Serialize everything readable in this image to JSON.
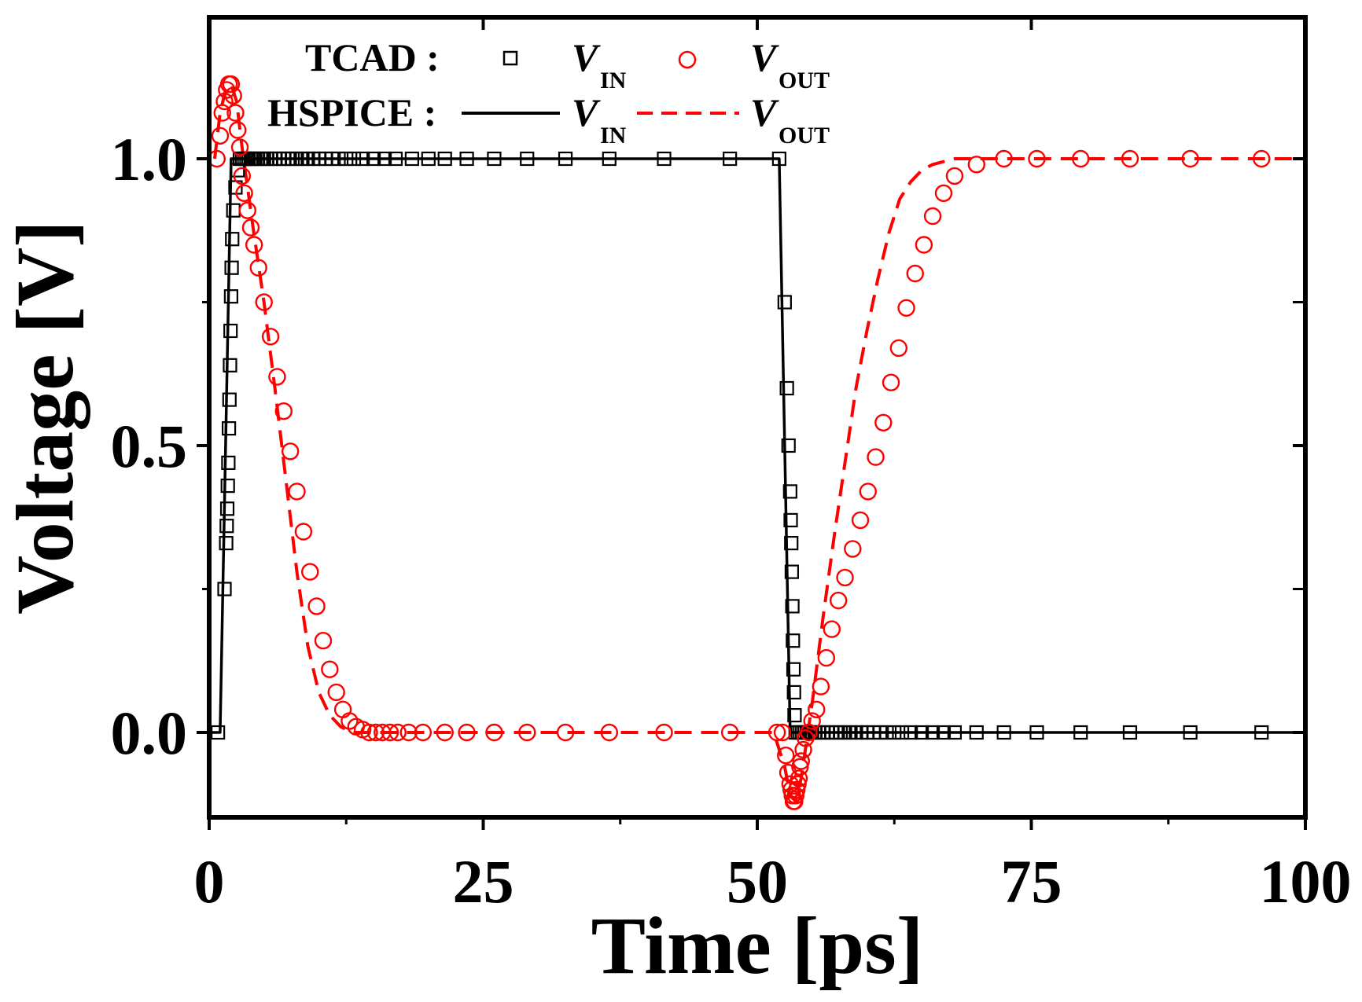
{
  "chart_data": {
    "type": "line",
    "xlabel": "Time [ps]",
    "ylabel": "Voltage [V]",
    "xlim": [
      0,
      100
    ],
    "ylim": [
      -0.15,
      1.25
    ],
    "xticks": [
      0,
      25,
      50,
      75,
      100
    ],
    "yticks": [
      0.0,
      0.5,
      1.0
    ],
    "xtick_labels": [
      "0",
      "25",
      "50",
      "75",
      "100"
    ],
    "ytick_labels": [
      "0.0",
      "0.5",
      "1.0"
    ],
    "legend": {
      "placement": "top-left",
      "rows": [
        {
          "group": "TCAD :",
          "items": [
            {
              "symbol": "square",
              "label": "V",
              "sub": "IN"
            },
            {
              "symbol": "circle",
              "label": "V",
              "sub": "OUT"
            }
          ]
        },
        {
          "group": "HSPICE :",
          "items": [
            {
              "symbol": "solid-line",
              "label": "V",
              "sub": "IN"
            },
            {
              "symbol": "dashed-line",
              "label": "V",
              "sub": "OUT"
            }
          ]
        }
      ]
    },
    "colors": {
      "vin": "#000000",
      "vout": "#ff0000",
      "axis": "#000000"
    },
    "series": [
      {
        "name": "HSPICE V_IN",
        "style": "solid",
        "color": "#000000",
        "x": [
          0,
          1,
          2,
          52,
          53,
          100
        ],
        "y": [
          0,
          0,
          1,
          1,
          0,
          0
        ]
      },
      {
        "name": "HSPICE V_OUT",
        "style": "dashed",
        "color": "#ff0000",
        "x": [
          0.5,
          1.0,
          1.5,
          2.0,
          2.5,
          3.0,
          3.5,
          4.0,
          5.0,
          6.0,
          7.0,
          8.0,
          9.0,
          10.0,
          11.0,
          12.0,
          13.0,
          15.0,
          20.0,
          30.0,
          40.0,
          50.0,
          51.5,
          52.5,
          53.0,
          53.5,
          54.0,
          55.0,
          56.0,
          57.0,
          58.0,
          59.0,
          60.0,
          61.0,
          62.0,
          63.0,
          64.0,
          65.0,
          66.0,
          68.0,
          70.0,
          75.0,
          85.0,
          100.0
        ],
        "y": [
          1.0,
          1.08,
          1.12,
          1.13,
          1.1,
          1.02,
          0.95,
          0.88,
          0.75,
          0.6,
          0.44,
          0.28,
          0.15,
          0.07,
          0.03,
          0.01,
          0.0,
          0.0,
          0.0,
          0.0,
          0.0,
          0.0,
          0.0,
          -0.06,
          -0.11,
          -0.12,
          -0.08,
          0.05,
          0.2,
          0.34,
          0.47,
          0.6,
          0.7,
          0.79,
          0.87,
          0.93,
          0.96,
          0.98,
          0.99,
          1.0,
          1.0,
          1.0,
          1.0,
          1.0
        ]
      },
      {
        "name": "TCAD V_IN",
        "marker": "square",
        "color": "#000000",
        "x": [
          0.8,
          1.4,
          1.55,
          1.6,
          1.65,
          1.7,
          1.75,
          1.8,
          1.85,
          1.9,
          1.95,
          2.0,
          2.05,
          2.1,
          2.2,
          2.4,
          2.6,
          2.8,
          3.0,
          3.2,
          3.4,
          3.6,
          3.8,
          4.0,
          4.2,
          4.4,
          4.7,
          5.0,
          5.3,
          5.6,
          6.0,
          6.4,
          6.8,
          7.2,
          7.6,
          8.0,
          8.5,
          9.0,
          9.5,
          10.0,
          10.6,
          11.2,
          11.8,
          12.5,
          13.2,
          14.0,
          15.0,
          16.0,
          17.0,
          18.5,
          20.0,
          21.5,
          23.5,
          26.0,
          29.0,
          32.5,
          36.5,
          41.5,
          47.5,
          52.0,
          52.5,
          52.7,
          52.85,
          53.0,
          53.05,
          53.1,
          53.15,
          53.2,
          53.25,
          53.3,
          53.35,
          53.4,
          53.5,
          53.7,
          53.9,
          54.1,
          54.3,
          54.5,
          54.7,
          55.0,
          55.3,
          55.6,
          56.0,
          56.4,
          56.8,
          57.2,
          57.6,
          58.0,
          58.5,
          59.0,
          59.5,
          60.0,
          60.6,
          61.2,
          61.8,
          62.5,
          63.2,
          64.0,
          65.0,
          66.0,
          67.0,
          68.0,
          70.0,
          72.5,
          75.5,
          79.5,
          84.0,
          89.5,
          96.0
        ],
        "y": [
          0.0,
          0.25,
          0.33,
          0.36,
          0.39,
          0.43,
          0.47,
          0.53,
          0.58,
          0.64,
          0.7,
          0.76,
          0.81,
          0.86,
          0.91,
          0.95,
          0.98,
          1.0,
          1.0,
          1.0,
          1.0,
          1.0,
          1.0,
          1.0,
          1.0,
          1.0,
          1.0,
          1.0,
          1.0,
          1.0,
          1.0,
          1.0,
          1.0,
          1.0,
          1.0,
          1.0,
          1.0,
          1.0,
          1.0,
          1.0,
          1.0,
          1.0,
          1.0,
          1.0,
          1.0,
          1.0,
          1.0,
          1.0,
          1.0,
          1.0,
          1.0,
          1.0,
          1.0,
          1.0,
          1.0,
          1.0,
          1.0,
          1.0,
          1.0,
          1.0,
          0.75,
          0.6,
          0.5,
          0.42,
          0.37,
          0.33,
          0.28,
          0.22,
          0.16,
          0.11,
          0.07,
          0.03,
          0.0,
          0.0,
          0.0,
          0.0,
          0.0,
          0.0,
          0.0,
          0.0,
          0.0,
          0.0,
          0.0,
          0.0,
          0.0,
          0.0,
          0.0,
          0.0,
          0.0,
          0.0,
          0.0,
          0.0,
          0.0,
          0.0,
          0.0,
          0.0,
          0.0,
          0.0,
          0.0,
          0.0,
          0.0,
          0.0,
          0.0,
          0.0,
          0.0,
          0.0,
          0.0,
          0.0,
          0.0
        ]
      },
      {
        "name": "TCAD V_OUT",
        "marker": "circle",
        "color": "#ff0000",
        "x": [
          0.7,
          1.0,
          1.2,
          1.4,
          1.6,
          1.8,
          2.0,
          2.2,
          2.4,
          2.6,
          2.8,
          3.0,
          3.2,
          3.5,
          3.8,
          4.1,
          4.5,
          5.0,
          5.6,
          6.2,
          6.8,
          7.4,
          8.0,
          8.6,
          9.2,
          9.8,
          10.4,
          11.0,
          11.6,
          12.2,
          12.8,
          13.4,
          14.0,
          14.6,
          15.2,
          15.8,
          16.5,
          17.2,
          18.2,
          19.5,
          21.5,
          23.5,
          26.0,
          29.0,
          32.5,
          36.5,
          41.5,
          47.5,
          51.8,
          52.3,
          52.6,
          52.8,
          53.0,
          53.1,
          53.2,
          53.3,
          53.4,
          53.5,
          53.6,
          53.7,
          53.8,
          53.9,
          54.0,
          54.2,
          54.4,
          54.7,
          55.0,
          55.4,
          55.8,
          56.3,
          56.8,
          57.4,
          58.0,
          58.7,
          59.4,
          60.1,
          60.8,
          61.5,
          62.2,
          62.9,
          63.6,
          64.4,
          65.2,
          66.0,
          67.0,
          68.0,
          70.0,
          72.5,
          75.5,
          79.5,
          84.0,
          89.5,
          96.0
        ],
        "y": [
          1.0,
          1.04,
          1.08,
          1.1,
          1.12,
          1.13,
          1.13,
          1.11,
          1.08,
          1.05,
          1.02,
          0.97,
          0.94,
          0.91,
          0.88,
          0.85,
          0.81,
          0.75,
          0.69,
          0.62,
          0.56,
          0.49,
          0.42,
          0.35,
          0.28,
          0.22,
          0.16,
          0.11,
          0.07,
          0.04,
          0.02,
          0.01,
          0.005,
          0.0,
          0.0,
          0.0,
          0.0,
          0.0,
          0.0,
          0.0,
          0.0,
          0.0,
          0.0,
          0.0,
          0.0,
          0.0,
          0.0,
          0.0,
          0.0,
          0.0,
          -0.04,
          -0.07,
          -0.09,
          -0.1,
          -0.11,
          -0.12,
          -0.12,
          -0.11,
          -0.1,
          -0.09,
          -0.08,
          -0.06,
          -0.05,
          -0.03,
          -0.01,
          0.0,
          0.02,
          0.04,
          0.08,
          0.13,
          0.18,
          0.23,
          0.27,
          0.32,
          0.37,
          0.42,
          0.48,
          0.54,
          0.61,
          0.67,
          0.74,
          0.8,
          0.85,
          0.9,
          0.94,
          0.97,
          0.99,
          1.0,
          1.0,
          1.0,
          1.0,
          1.0,
          1.0
        ]
      }
    ]
  }
}
